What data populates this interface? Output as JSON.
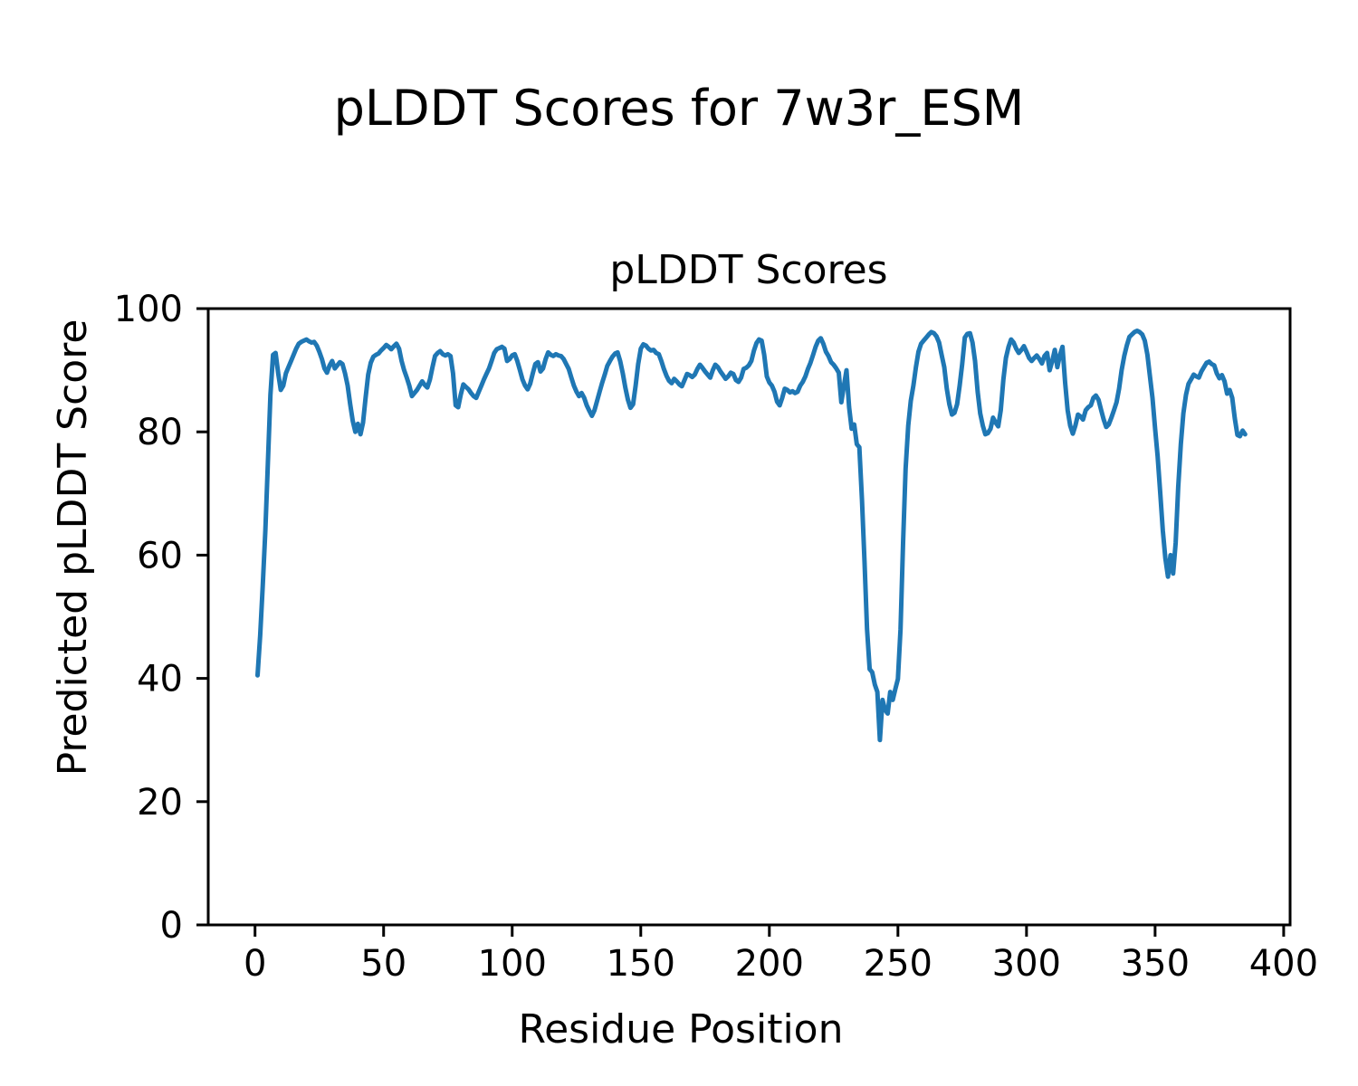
{
  "figure": {
    "suptitle": "pLDDT Scores for 7w3r_ESM",
    "axes": {
      "title": "pLDDT Scores",
      "xlabel": "Residue Position",
      "ylabel": "Predicted pLDDT Score"
    }
  },
  "colors": {
    "line": "#1f77b4",
    "axis": "#000000",
    "background": "#ffffff"
  },
  "chart_data": {
    "type": "line",
    "title": "pLDDT Scores",
    "suptitle": "pLDDT Scores for 7w3r_ESM",
    "xlabel": "Residue Position",
    "ylabel": "Predicted pLDDT Score",
    "xlim": [
      -18.2,
      402.5
    ],
    "ylim": [
      0,
      100
    ],
    "xticks": [
      0,
      50,
      100,
      150,
      200,
      250,
      300,
      350,
      400
    ],
    "yticks": [
      0,
      20,
      40,
      60,
      80,
      100
    ],
    "grid": false,
    "legend": false,
    "series": [
      {
        "name": "pLDDT",
        "color": "#1f77b4",
        "line_width": 5,
        "x_start": 1,
        "x_step": 1,
        "y": [
          40.5,
          47,
          55,
          64,
          75,
          86,
          92.5,
          92.8,
          89.5,
          86.8,
          87.5,
          89.5,
          90.5,
          91.5,
          92.5,
          93.5,
          94.3,
          94.6,
          94.8,
          95,
          94.7,
          94.5,
          94.6,
          94,
          93,
          91.8,
          90.3,
          89.6,
          90.8,
          91.5,
          90.3,
          90.8,
          91.3,
          91,
          89.5,
          87.5,
          84.5,
          81.8,
          80,
          81.3,
          79.6,
          81.5,
          85.5,
          89.3,
          91.2,
          92.2,
          92.5,
          92.7,
          93.2,
          93.6,
          94.1,
          93.8,
          93.4,
          93.9,
          94.3,
          93.5,
          91.5,
          90,
          88.8,
          87.5,
          85.8,
          86.3,
          86.8,
          87.5,
          88.2,
          87.6,
          87.2,
          88.5,
          90.5,
          92.3,
          92.8,
          93.1,
          92.6,
          92.4,
          92.6,
          92.3,
          89.5,
          84.3,
          84,
          86,
          87.7,
          87.3,
          86.9,
          86.3,
          85.8,
          85.5,
          86.5,
          87.5,
          88.5,
          89.4,
          90.3,
          91.5,
          92.8,
          93.4,
          93.6,
          93.8,
          93.5,
          91.5,
          91.8,
          92.4,
          92.6,
          91.5,
          90,
          88.5,
          87.5,
          86.9,
          87.8,
          89.5,
          91,
          91.3,
          89.8,
          90.3,
          91.8,
          92.9,
          92.5,
          92.3,
          92.6,
          92.4,
          92.3,
          91.8,
          91,
          90.2,
          88.8,
          87.5,
          86.5,
          85.8,
          86.3,
          85.5,
          84.3,
          83.4,
          82.6,
          83.5,
          85,
          86.5,
          88,
          89.3,
          90.7,
          91.5,
          92.2,
          92.7,
          92.9,
          91.5,
          89.5,
          87.2,
          85.2,
          83.9,
          84.5,
          87.5,
          91,
          93.5,
          94.2,
          94,
          93.5,
          93.2,
          93.3,
          92.8,
          92.6,
          91.5,
          90.2,
          89.1,
          88.3,
          87.9,
          88.6,
          88.2,
          87.7,
          87.4,
          88.4,
          89.4,
          89.2,
          88.9,
          89.3,
          90.2,
          90.9,
          90.4,
          89.8,
          89.3,
          88.8,
          90,
          90.9,
          90.5,
          89.8,
          89.2,
          88.6,
          89,
          89.6,
          89.4,
          88.4,
          88.1,
          88.8,
          90.2,
          90.4,
          90.8,
          91.5,
          93.2,
          94.4,
          95,
          94.8,
          92.5,
          89,
          88,
          87.5,
          86.5,
          84.9,
          84.3,
          85.5,
          87,
          86.8,
          86.4,
          86.6,
          86.3,
          86.5,
          87.5,
          88.1,
          89,
          90.2,
          91.2,
          92.5,
          93.8,
          94.8,
          95.2,
          94.3,
          93,
          92.3,
          91.3,
          90.9,
          90.3,
          89.6,
          84.8,
          87.5,
          90,
          84,
          80.5,
          81.2,
          78,
          77.5,
          69,
          59,
          48,
          41.5,
          41,
          39,
          37.8,
          30,
          36.5,
          34.9,
          34.3,
          37.8,
          36.5,
          38.3,
          39.9,
          48,
          62,
          74,
          81,
          85,
          87.5,
          90.5,
          93,
          94.3,
          94.8,
          95.3,
          95.8,
          96.2,
          96,
          95.5,
          94.5,
          92.5,
          90.5,
          87,
          84.5,
          82.8,
          83.1,
          84.5,
          87.5,
          91,
          95.3,
          95.9,
          96,
          94.5,
          91.5,
          86.5,
          83,
          81,
          79.6,
          79.8,
          80.5,
          82.3,
          81.5,
          80.9,
          83.5,
          88.5,
          92,
          93.8,
          95,
          94.5,
          93.5,
          92.8,
          93.3,
          93.9,
          93,
          92,
          91.5,
          92,
          92.4,
          91.8,
          91.1,
          92.3,
          92.8,
          90,
          91.5,
          93.3,
          90.5,
          92.5,
          93.8,
          88,
          83.5,
          81,
          79.7,
          81,
          82.8,
          82.5,
          82,
          83.5,
          84,
          84.3,
          85.5,
          85.9,
          85.2,
          83.6,
          82,
          80.8,
          81.2,
          82.3,
          83.5,
          84.8,
          87,
          90,
          92.3,
          94,
          95.4,
          95.8,
          96.2,
          96.4,
          96.2,
          95.8,
          94.8,
          92.5,
          89,
          85.5,
          80.5,
          76,
          70,
          64,
          59.5,
          56.5,
          60,
          57,
          62,
          71,
          78,
          83,
          86,
          87.8,
          88.5,
          89.3,
          89,
          88.8,
          89.8,
          90.5,
          91.2,
          91.4,
          91,
          90.8,
          89.5,
          88.7,
          89.2,
          88.2,
          86.2,
          86.8,
          85.5,
          82.2,
          79.5,
          79.3,
          80.2,
          79.6
        ]
      }
    ]
  }
}
